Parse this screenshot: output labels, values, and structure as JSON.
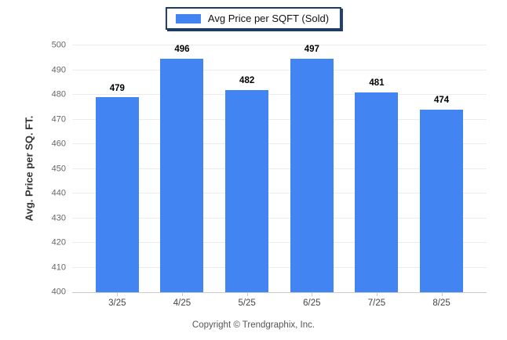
{
  "legend": {
    "label": "Avg Price per SQFT (Sold)"
  },
  "footer": {
    "copyright": "Copyright © Trendgraphix, Inc."
  },
  "chart_data": {
    "type": "bar",
    "title": "",
    "series_name": "Avg Price per SQFT (Sold)",
    "categories": [
      "3/25",
      "4/25",
      "5/25",
      "6/25",
      "7/25",
      "8/25"
    ],
    "values": [
      479,
      496,
      482,
      497,
      481,
      474
    ],
    "xlabel": "",
    "ylabel": "Avg. Price per SQ. FT.",
    "ylim": [
      400,
      500
    ],
    "yticks": [
      400,
      410,
      420,
      430,
      440,
      450,
      460,
      470,
      480,
      490,
      500
    ],
    "grid": "horizontal",
    "legend_position": "top-center",
    "data_labels": true,
    "bar_color": "#4184f2",
    "legend_border_color": "#1d3c63",
    "gridline_color": "#ececec",
    "axis_line_color": "#c9c9c9"
  }
}
